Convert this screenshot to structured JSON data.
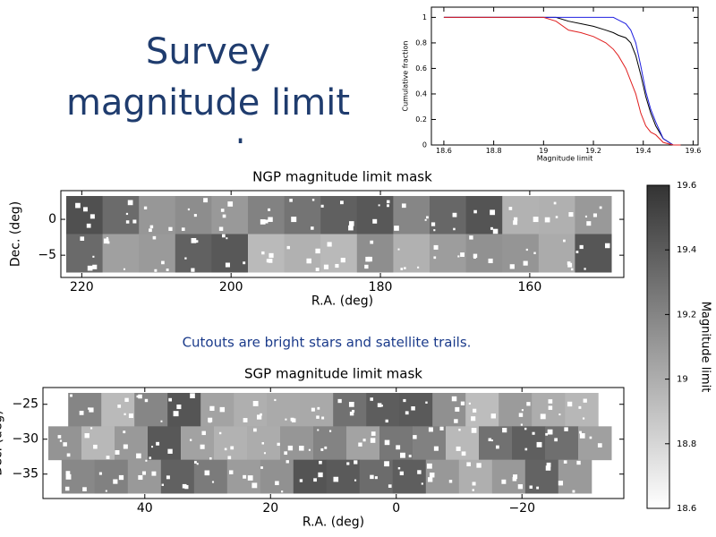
{
  "title": "Survey magnitude limit mask",
  "caption": "Cutouts are bright stars and satellite trails.",
  "chart_data": [
    {
      "type": "line",
      "xlabel": "Magnitude limit",
      "ylabel": "Cumulative fraction",
      "xlim": [
        18.55,
        19.62
      ],
      "xticks": [
        18.6,
        18.8,
        19,
        19.2,
        19.4,
        19.6
      ],
      "ylim": [
        0,
        1.08
      ],
      "yticks": [
        0,
        0.2,
        0.4,
        0.6,
        0.8,
        1
      ],
      "x": [
        18.6,
        19.0,
        19.05,
        19.1,
        19.15,
        19.2,
        19.25,
        19.28,
        19.3,
        19.33,
        19.35,
        19.37,
        19.39,
        19.41,
        19.43,
        19.45,
        19.48,
        19.52,
        19.55
      ],
      "series": [
        {
          "color": "#000000",
          "values": [
            1,
            1,
            1,
            0.97,
            0.95,
            0.93,
            0.9,
            0.88,
            0.86,
            0.84,
            0.8,
            0.7,
            0.55,
            0.38,
            0.25,
            0.15,
            0.05,
            0,
            0
          ]
        },
        {
          "color": "#2020e0",
          "values": [
            1,
            1,
            1,
            1,
            1,
            1,
            1,
            1,
            0.98,
            0.95,
            0.9,
            0.8,
            0.62,
            0.42,
            0.28,
            0.18,
            0.05,
            0,
            0
          ]
        },
        {
          "color": "#e02020",
          "values": [
            1,
            1,
            0.97,
            0.9,
            0.88,
            0.85,
            0.8,
            0.75,
            0.7,
            0.6,
            0.5,
            0.4,
            0.25,
            0.15,
            0.1,
            0.08,
            0.02,
            0,
            0
          ]
        }
      ]
    },
    {
      "type": "image",
      "title": "NGP magnitude limit mask",
      "xlabel": "R.A. (deg)",
      "ylabel": "Dec. (deg)",
      "xlim": [
        222.8,
        147.4
      ],
      "xticks": [
        220,
        200,
        180,
        160
      ],
      "ylim": [
        -8.1,
        4
      ],
      "yticks": [
        0,
        {
          "value": -5,
          "label": "−5"
        }
      ]
    },
    {
      "type": "image",
      "title": "SGP magnitude limit mask",
      "xlabel": "R.A. (deg)",
      "ylabel": "Dec. (deg)",
      "xlim": [
        56.2,
        -36.2
      ],
      "xticks": [
        40,
        20,
        0,
        {
          "value": -20,
          "label": "−20"
        }
      ],
      "ylim": [
        -38.5,
        -22.6
      ],
      "yticks": [
        {
          "value": -25,
          "label": "−25"
        },
        {
          "value": -30,
          "label": "−30"
        },
        {
          "value": -35,
          "label": "−35"
        }
      ]
    },
    {
      "type": "colorbar",
      "label": "Magnitude limit",
      "ylim": [
        18.6,
        19.6
      ],
      "yticks": [
        18.6,
        18.8,
        19,
        19.2,
        19.4,
        19.6
      ]
    }
  ]
}
